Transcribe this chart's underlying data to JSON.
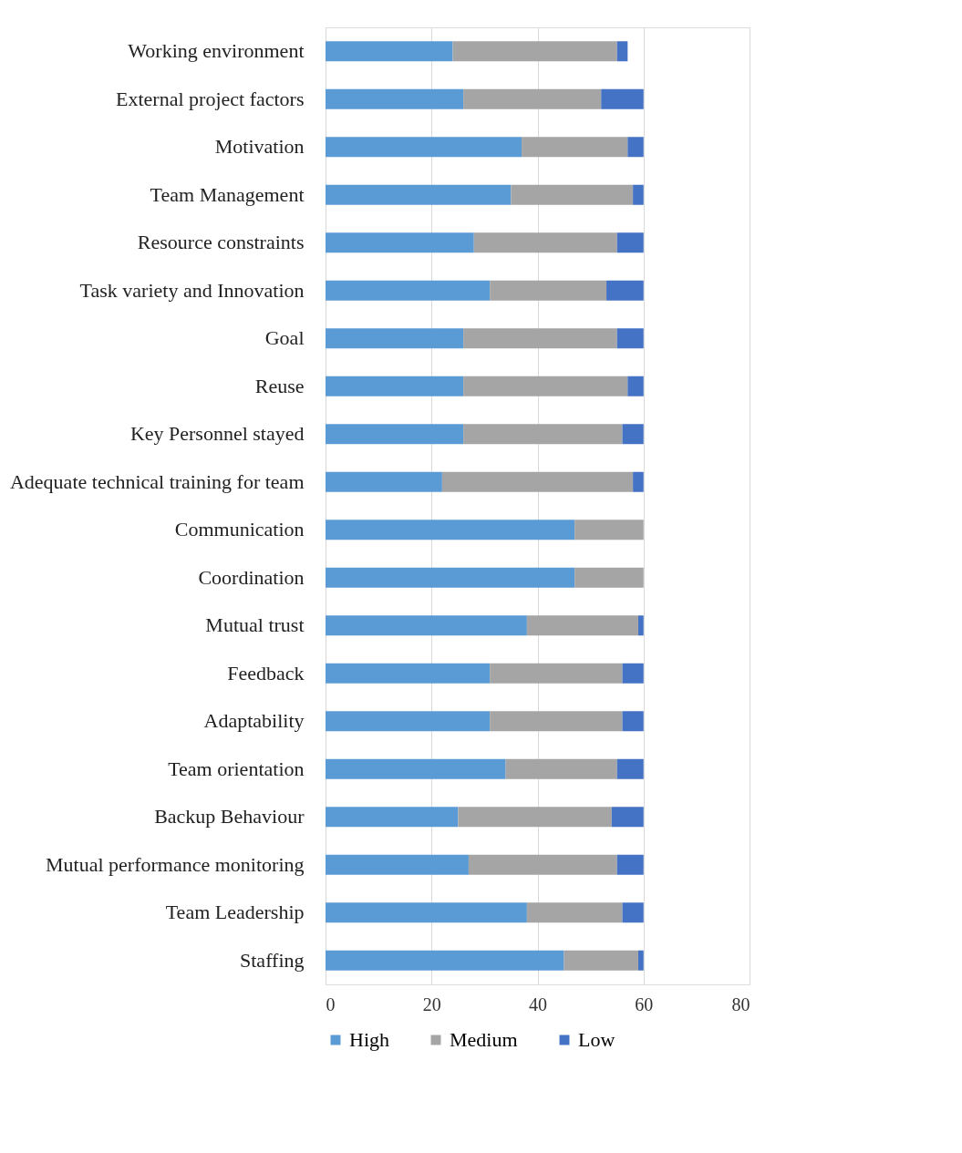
{
  "chart_data": {
    "type": "bar",
    "orientation": "horizontal",
    "stacked": true,
    "categories": [
      "Working environment",
      "External project factors",
      "Motivation",
      "Team Management",
      "Resource constraints",
      "Task variety and Innovation",
      "Goal",
      "Reuse",
      "Key Personnel stayed",
      "Adequate technical training for team",
      "Communication",
      "Coordination",
      "Mutual trust",
      "Feedback",
      "Adaptability",
      "Team orientation",
      "Backup Behaviour",
      "Mutual performance monitoring",
      "Team Leadership",
      "Staffing"
    ],
    "series": [
      {
        "name": "High",
        "color": "#5b9bd5",
        "values": [
          24,
          26,
          37,
          35,
          28,
          31,
          26,
          26,
          26,
          22,
          47,
          47,
          38,
          31,
          31,
          34,
          25,
          27,
          38,
          45
        ]
      },
      {
        "name": "Medium",
        "color": "#a5a5a5",
        "values": [
          31,
          26,
          20,
          23,
          27,
          22,
          29,
          31,
          30,
          36,
          13,
          13,
          21,
          25,
          25,
          21,
          29,
          28,
          18,
          14
        ]
      },
      {
        "name": "Low",
        "color": "#4472c4",
        "values": [
          2,
          8,
          3,
          2,
          5,
          7,
          5,
          3,
          4,
          2,
          0,
          0,
          1,
          4,
          4,
          5,
          6,
          5,
          4,
          1
        ]
      }
    ],
    "xlim": [
      0,
      80
    ],
    "xticks": [
      0,
      20,
      40,
      60,
      80
    ],
    "grid": "x",
    "legend": "bottom"
  }
}
